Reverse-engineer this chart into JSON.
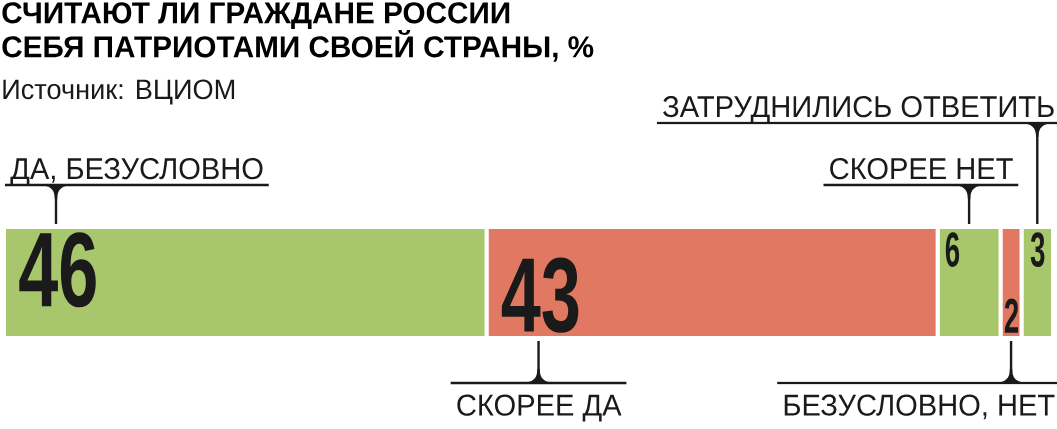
{
  "chart_data": {
    "type": "bar",
    "title": "СЧИТАЮТ ЛИ ГРАЖДАНЕ РОССИИ СЕБЯ ПАТРИОТАМИ СВОЕЙ СТРАНЫ, %",
    "annotations": [
      "Источник: ВЦИОМ"
    ],
    "categories": [
      null
    ],
    "orientation": "horizontal",
    "stacked": true,
    "tick_labels": false,
    "data_labels": true,
    "series": [
      {
        "name": "ДА, БЕЗУСЛОВНО",
        "color": "#a8c66c",
        "values": [
          46
        ]
      },
      {
        "name": "СКОРЕЕ ДА",
        "color": "#e07862",
        "values": [
          43
        ]
      },
      {
        "name": "СКОРЕЕ НЕТ",
        "color": "#a8c66c",
        "values": [
          6
        ]
      },
      {
        "name": "БЕЗУСЛОВНО, НЕТ",
        "color": "#e07862",
        "values": [
          2
        ]
      },
      {
        "name": "ЗАТРУДНИЛИСЬ ОТВЕТИТЬ",
        "color": "#a8c66c",
        "values": [
          3
        ]
      }
    ]
  }
}
